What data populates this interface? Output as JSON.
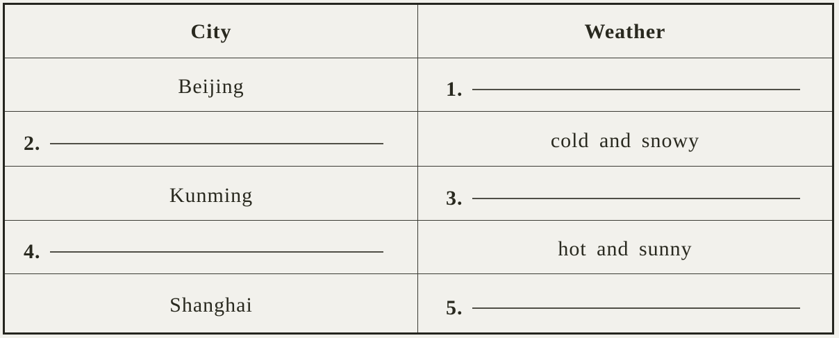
{
  "table": {
    "columns": [
      "City",
      "Weather"
    ],
    "rows": [
      {
        "city": "Beijing",
        "weather_blank_number": "1."
      },
      {
        "city_blank_number": "2.",
        "weather": "cold and snowy"
      },
      {
        "city": "Kunming",
        "weather_blank_number": "3."
      },
      {
        "city_blank_number": "4.",
        "weather": "hot and sunny"
      },
      {
        "city": "Shanghai",
        "weather_blank_number": "5."
      }
    ]
  },
  "colors": {
    "paper": "#f2f1ec",
    "border": "#25251f",
    "grid_line": "#3b3b34",
    "text": "#29291f",
    "blank_line": "#4f4e46"
  }
}
